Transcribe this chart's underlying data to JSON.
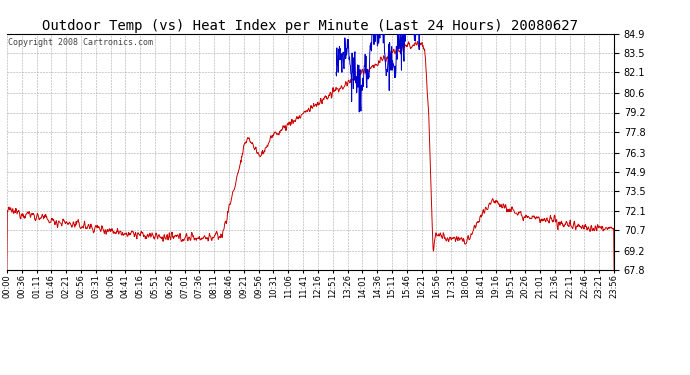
{
  "title": "Outdoor Temp (vs) Heat Index per Minute (Last 24 Hours) 20080627",
  "copyright": "Copyright 2008 Cartronics.com",
  "ylim": [
    67.8,
    84.9
  ],
  "yticks": [
    67.8,
    69.2,
    70.7,
    72.1,
    73.5,
    74.9,
    76.3,
    77.8,
    79.2,
    80.6,
    82.1,
    83.5,
    84.9
  ],
  "bg_color": "#ffffff",
  "grid_color": "#aaaaaa",
  "line_color_temp": "#cc0000",
  "line_color_heat": "#0000cc",
  "xtick_labels": [
    "00:00",
    "00:36",
    "01:11",
    "01:46",
    "02:21",
    "02:56",
    "03:31",
    "04:06",
    "04:41",
    "05:16",
    "05:51",
    "06:26",
    "07:01",
    "07:36",
    "08:11",
    "08:46",
    "09:21",
    "09:56",
    "10:31",
    "11:06",
    "11:41",
    "12:16",
    "12:51",
    "13:26",
    "14:01",
    "14:36",
    "15:11",
    "15:46",
    "16:21",
    "16:56",
    "17:31",
    "18:06",
    "18:41",
    "19:16",
    "19:51",
    "20:26",
    "21:01",
    "21:36",
    "22:11",
    "22:46",
    "23:21",
    "23:56"
  ],
  "title_fontsize": 10,
  "copyright_fontsize": 6,
  "ytick_fontsize": 7,
  "xtick_fontsize": 6
}
